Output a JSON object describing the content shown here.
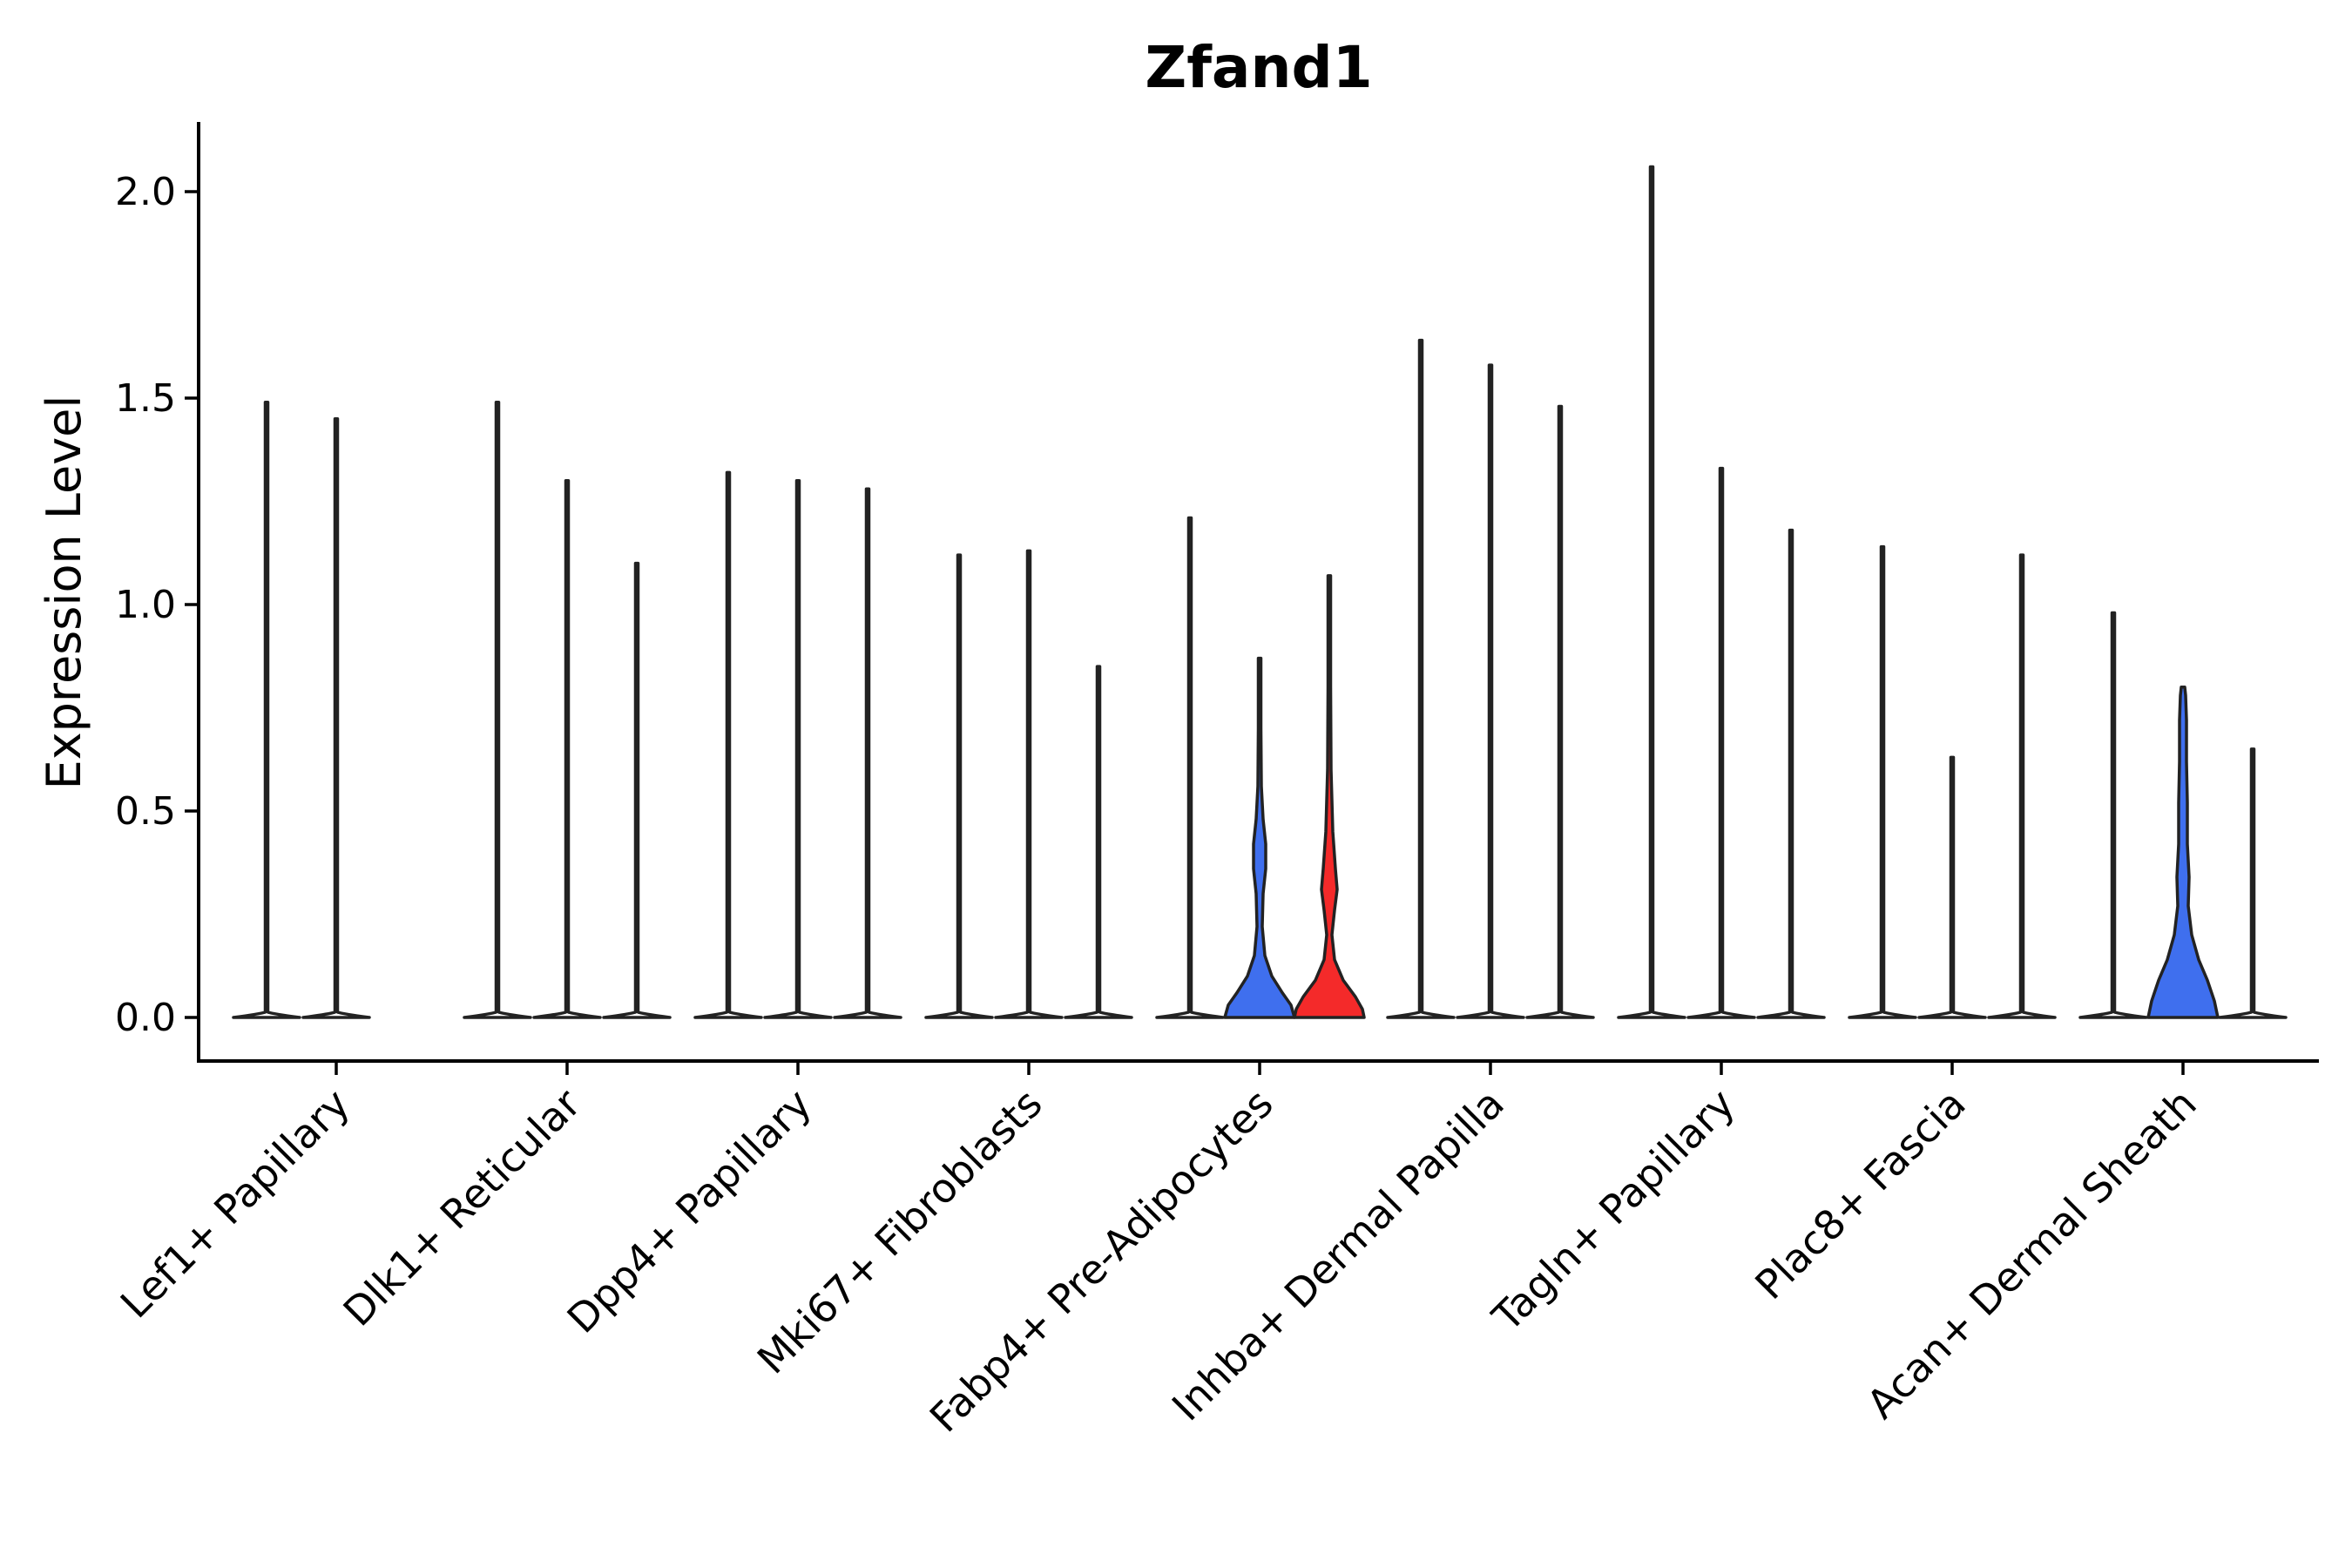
{
  "chart_data": {
    "type": "violin",
    "title": "Zfand1",
    "xlabel": "",
    "ylabel": "Expression Level",
    "ylim": [
      -0.1,
      2.15
    ],
    "yticks": [
      0.0,
      0.5,
      1.0,
      1.5,
      2.0
    ],
    "ytick_labels": [
      "0.0",
      "0.5",
      "1.0",
      "1.5",
      "2.0"
    ],
    "categories": [
      "Lef1+ Papillary",
      "Dlk1+ Reticular",
      "Dpp4+ Papillary",
      "Mki67+ Fibroblasts",
      "Fabp4+ Pre-Adipocytes",
      "Inhba+ Dermal Papilla",
      "Tagln+ Papillary",
      "Plac8+ Fascia",
      "Acan+ Dermal Sheath"
    ],
    "series_count": 3,
    "colors": {
      "blue": "#3f6fee",
      "red": "#f42a2a",
      "empty": "#ffffff"
    },
    "violins": [
      {
        "category": 0,
        "slot": 0,
        "max": 1.49,
        "fill": "empty"
      },
      {
        "category": 0,
        "slot": 1,
        "max": 1.45,
        "fill": "empty"
      },
      {
        "category": 1,
        "slot": 0,
        "max": 1.49,
        "fill": "empty"
      },
      {
        "category": 1,
        "slot": 1,
        "max": 1.3,
        "fill": "empty"
      },
      {
        "category": 1,
        "slot": 2,
        "max": 1.1,
        "fill": "empty"
      },
      {
        "category": 2,
        "slot": 0,
        "max": 1.32,
        "fill": "empty"
      },
      {
        "category": 2,
        "slot": 1,
        "max": 1.3,
        "fill": "empty"
      },
      {
        "category": 2,
        "slot": 2,
        "max": 1.28,
        "fill": "empty"
      },
      {
        "category": 3,
        "slot": 0,
        "max": 1.12,
        "fill": "empty"
      },
      {
        "category": 3,
        "slot": 1,
        "max": 1.13,
        "fill": "empty"
      },
      {
        "category": 3,
        "slot": 2,
        "max": 0.85,
        "fill": "empty"
      },
      {
        "category": 4,
        "slot": 0,
        "max": 1.21,
        "fill": "empty"
      },
      {
        "category": 4,
        "slot": 1,
        "max": 0.87,
        "fill": "blue"
      },
      {
        "category": 4,
        "slot": 2,
        "max": 1.07,
        "fill": "red"
      },
      {
        "category": 5,
        "slot": 0,
        "max": 1.64,
        "fill": "empty"
      },
      {
        "category": 5,
        "slot": 1,
        "max": 1.58,
        "fill": "empty"
      },
      {
        "category": 5,
        "slot": 2,
        "max": 1.48,
        "fill": "empty"
      },
      {
        "category": 6,
        "slot": 0,
        "max": 2.06,
        "fill": "empty"
      },
      {
        "category": 6,
        "slot": 1,
        "max": 1.33,
        "fill": "empty"
      },
      {
        "category": 6,
        "slot": 2,
        "max": 1.18,
        "fill": "empty"
      },
      {
        "category": 7,
        "slot": 0,
        "max": 1.14,
        "fill": "empty"
      },
      {
        "category": 7,
        "slot": 1,
        "max": 0.63,
        "fill": "empty"
      },
      {
        "category": 7,
        "slot": 2,
        "max": 1.12,
        "fill": "empty"
      },
      {
        "category": 8,
        "slot": 0,
        "max": 0.98,
        "fill": "empty"
      },
      {
        "category": 8,
        "slot": 1,
        "max": 0.8,
        "fill": "blue"
      },
      {
        "category": 8,
        "slot": 2,
        "max": 0.65,
        "fill": "empty"
      }
    ]
  }
}
